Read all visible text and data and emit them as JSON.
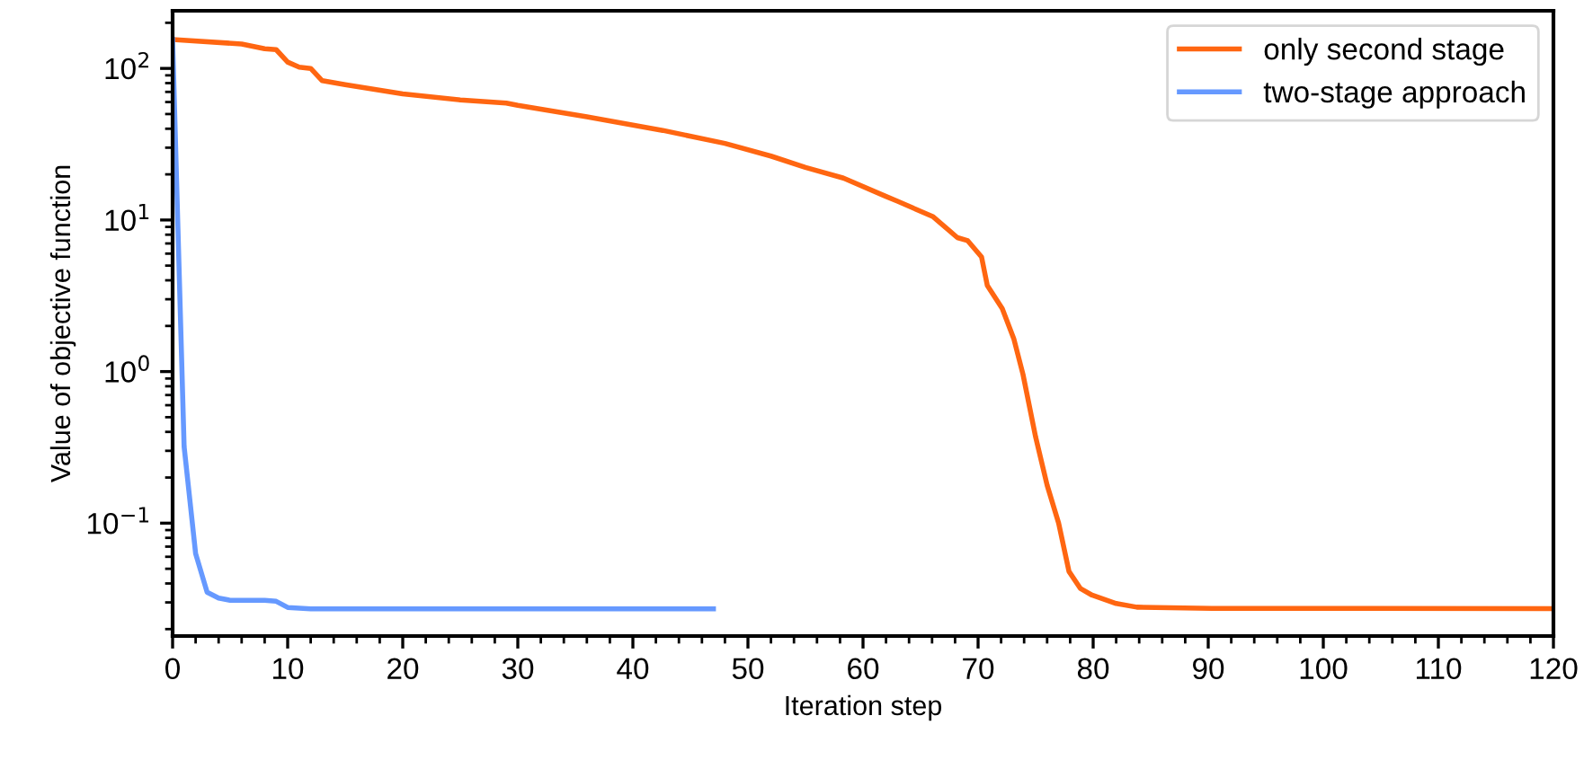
{
  "chart_data": {
    "type": "line",
    "xlabel": "Iteration step",
    "ylabel": "Value of objective function",
    "log": "y",
    "xlim": [
      0,
      120
    ],
    "xticks": [
      0,
      10,
      20,
      30,
      40,
      50,
      60,
      70,
      80,
      90,
      100,
      110,
      120
    ],
    "ylim": [
      0.018,
      240
    ],
    "yticks": [
      {
        "value": 0.1,
        "label": "10$^{−1}$"
      },
      {
        "value": 1,
        "label": "10$^{0}$"
      },
      {
        "value": 10,
        "label": "10$^{1}$"
      },
      {
        "value": 100,
        "label": "10$^{2}$"
      }
    ],
    "grid": false,
    "legend": "top right",
    "marker": "none",
    "line_style": "solid",
    "series": [
      {
        "name": "only second stage",
        "color": "#ff6611",
        "x": [
          0,
          6,
          8,
          9,
          10,
          11,
          12,
          13,
          15,
          20,
          25,
          29,
          30,
          36,
          42.6,
          48,
          52,
          55,
          58.3,
          61.9,
          63,
          66.1,
          68.2,
          69.1,
          70.3,
          70.8,
          72.1,
          73.1,
          73.9,
          75,
          76,
          77,
          77.9,
          78.9,
          79.9,
          82,
          83.8,
          90.3,
          120
        ],
        "values": [
          155,
          145,
          135,
          133,
          110,
          102,
          100,
          83,
          78,
          68,
          62,
          59,
          57,
          48,
          39,
          32,
          26.4,
          22.2,
          18.9,
          14.4,
          13.3,
          10.5,
          7.65,
          7.3,
          5.7,
          3.7,
          2.6,
          1.65,
          0.96,
          0.37,
          0.178,
          0.1,
          0.048,
          0.037,
          0.0335,
          0.0295,
          0.0279,
          0.0274,
          0.0273
        ]
      },
      {
        "name": "two-stage approach",
        "color": "#6699ff",
        "x": [
          0,
          1,
          2,
          3,
          4,
          5,
          8,
          9,
          10,
          12,
          20,
          47
        ],
        "values": [
          155,
          0.32,
          0.063,
          0.035,
          0.032,
          0.031,
          0.031,
          0.0305,
          0.0278,
          0.0272,
          0.0272,
          0.0272
        ]
      }
    ]
  }
}
